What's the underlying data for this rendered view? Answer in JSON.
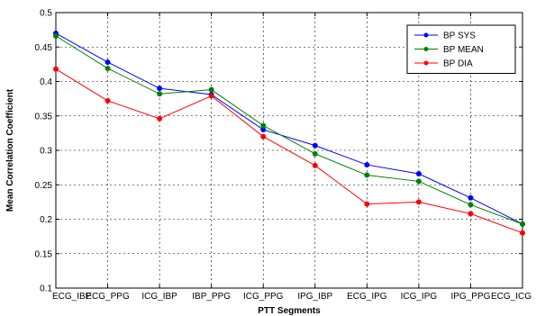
{
  "chart_data": {
    "type": "line",
    "xlabel": "PTT Segments",
    "ylabel": "Mean Correlation Coefficient",
    "categories": [
      "ECG_IBP",
      "ECG_PPG",
      "ICG_IBP",
      "IBP_PPG",
      "ICG_PPG",
      "IPG_IBP",
      "ECG_IPG",
      "ICG_IPG",
      "IPG_PPG",
      "ECG_ICG"
    ],
    "ylim": [
      0.1,
      0.5
    ],
    "yticks": [
      0.1,
      0.15,
      0.2,
      0.25,
      0.3,
      0.35,
      0.4,
      0.45,
      0.5
    ],
    "ytick_labels": [
      "0.1",
      "0.15",
      "0.2",
      "0.25",
      "0.3",
      "0.35",
      "0.4",
      "0.45",
      "0.5"
    ],
    "grid": true,
    "legend_position": "top-right",
    "series": [
      {
        "name": "BP SYS",
        "color": "#0000ff",
        "values": [
          0.47,
          0.428,
          0.39,
          0.381,
          0.33,
          0.307,
          0.279,
          0.266,
          0.231,
          0.193
        ]
      },
      {
        "name": "BP MEAN",
        "color": "#008000",
        "values": [
          0.466,
          0.419,
          0.382,
          0.388,
          0.336,
          0.295,
          0.264,
          0.255,
          0.221,
          0.193
        ]
      },
      {
        "name": "BP DIA",
        "color": "#ff0000",
        "values": [
          0.418,
          0.372,
          0.346,
          0.379,
          0.32,
          0.278,
          0.222,
          0.225,
          0.208,
          0.18
        ]
      }
    ]
  }
}
